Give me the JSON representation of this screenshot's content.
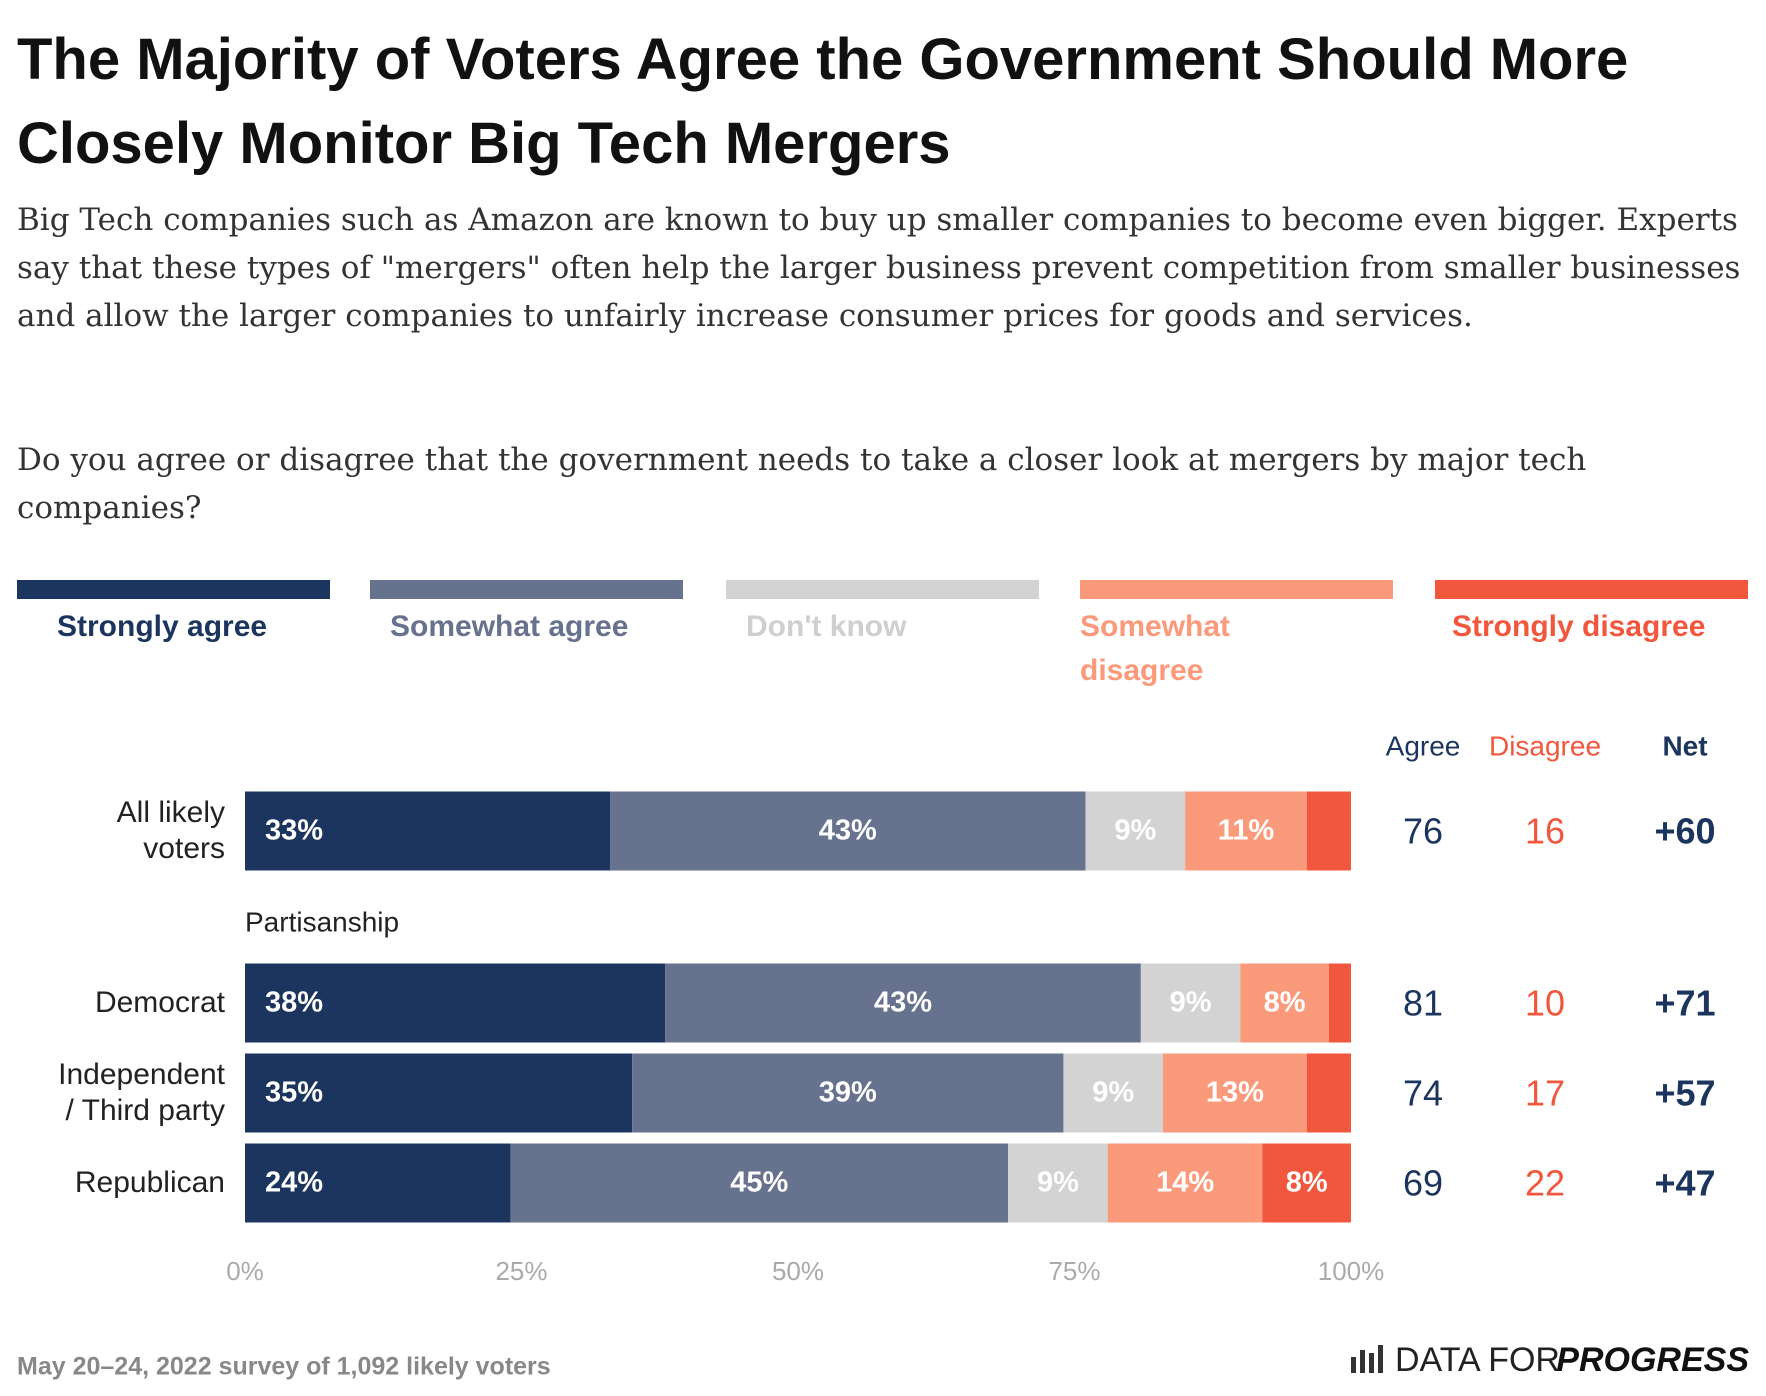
{
  "chart_data": {
    "type": "stacked-bar-horizontal",
    "title": "The Majority of Voters Agree the Government Should More Closely Monitor Big Tech Mergers",
    "subtitle": "Big Tech companies such as Amazon are known to buy up smaller companies to become even bigger. Experts say that these types of \"mergers\" often help the larger business prevent competition from smaller businesses and allow the larger companies to unfairly increase consumer prices for goods and services.",
    "question": "Do you agree or disagree that the government needs to take a closer look at mergers by major tech companies?",
    "categories": [
      "All likely voters",
      "Democrat",
      "Independent / Third party",
      "Republican"
    ],
    "group_label": "Partisanship",
    "series": [
      {
        "name": "Strongly agree",
        "color": "#1c355e",
        "values": [
          33,
          38,
          35,
          24
        ],
        "value_labels": [
          "33%",
          "38%",
          "35%",
          "24%"
        ]
      },
      {
        "name": "Somewhat agree",
        "color": "#67728f",
        "values": [
          43,
          43,
          39,
          45
        ],
        "value_labels": [
          "43%",
          "43%",
          "39%",
          "45%"
        ]
      },
      {
        "name": "Don't know",
        "color": "#d3d3d3",
        "values": [
          9,
          9,
          9,
          9
        ],
        "value_labels": [
          "9%",
          "9%",
          "9%",
          "9%"
        ]
      },
      {
        "name": "Somewhat disagree",
        "color": "#fb9a7a",
        "values": [
          11,
          8,
          13,
          14
        ],
        "value_labels": [
          "11%",
          "8%",
          "13%",
          "14%"
        ]
      },
      {
        "name": "Strongly disagree",
        "color": "#f0573c",
        "values": [
          4,
          2,
          4,
          8
        ],
        "value_labels": [
          null,
          null,
          null,
          "8%"
        ]
      }
    ],
    "xlim": [
      0,
      100
    ],
    "xticks": [
      {
        "value": 0,
        "label": "0%"
      },
      {
        "value": 25,
        "label": "25%"
      },
      {
        "value": 50,
        "label": "50%"
      },
      {
        "value": 75,
        "label": "75%"
      },
      {
        "value": 100,
        "label": "100%"
      }
    ],
    "summary": [
      {
        "name": "Agree",
        "color": "#1c355e",
        "values": [
          76,
          81,
          74,
          69
        ]
      },
      {
        "name": "Disagree",
        "color": "#f0573c",
        "values": [
          16,
          10,
          17,
          22
        ]
      },
      {
        "name": "Net",
        "color": "#1c355e",
        "values": [
          "+60",
          "+71",
          "+57",
          "+47"
        ]
      }
    ],
    "source": "May 20–24, 2022 survey of 1,092 likely voters",
    "logo": [
      "DATA FOR",
      "PROGRESS"
    ]
  }
}
